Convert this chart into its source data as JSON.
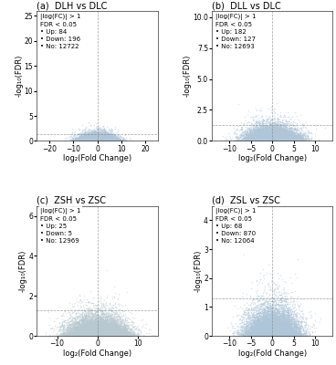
{
  "panels": [
    {
      "label": "(a)",
      "title": "DLH vs DLC",
      "up": 84,
      "down": 196,
      "no": 12722,
      "xlim": [
        -25,
        25
      ],
      "ylim": [
        0,
        26
      ],
      "yticks": [
        0,
        5,
        10,
        15,
        20,
        25
      ],
      "xticks": [
        -20,
        -10,
        0,
        10,
        20
      ],
      "seed": 42,
      "up_color": "#d94f43",
      "down_color": "#4472c4",
      "no_color": "#aec6d8",
      "fdr_line": 1.3,
      "fc_thresh": 1,
      "no_x_std": 3.5,
      "no_y_scale": 0.4,
      "up_x_mean": 6,
      "up_x_std": 3,
      "down_x_mean": -6,
      "down_x_std": 3,
      "sig_y_scale": 2.0
    },
    {
      "label": "(b)",
      "title": "DLL vs DLC",
      "up": 182,
      "down": 127,
      "no": 12693,
      "xlim": [
        -14,
        14
      ],
      "ylim": [
        0,
        10.5
      ],
      "yticks": [
        0.0,
        2.5,
        5.0,
        7.5,
        10.0
      ],
      "xticks": [
        -10,
        -5,
        0,
        5,
        10
      ],
      "seed": 123,
      "up_color": "#d94f43",
      "down_color": "#4472c4",
      "no_color": "#aec6d8",
      "fdr_line": 1.3,
      "fc_thresh": 1,
      "no_x_std": 3.0,
      "no_y_scale": 0.35,
      "up_x_mean": 4,
      "up_x_std": 2,
      "down_x_mean": -4,
      "down_x_std": 2,
      "sig_y_scale": 1.5
    },
    {
      "label": "(c)",
      "title": "ZSH vs ZSC",
      "up": 25,
      "down": 5,
      "no": 12969,
      "xlim": [
        -15,
        15
      ],
      "ylim": [
        0,
        6.5
      ],
      "yticks": [
        0,
        2,
        4,
        6
      ],
      "xticks": [
        -10,
        0,
        10
      ],
      "seed": 77,
      "up_color": "#d94f43",
      "down_color": "#4472c4",
      "no_color": "#b8c8d0",
      "fdr_line": 1.3,
      "fc_thresh": 1,
      "no_x_std": 3.5,
      "no_y_scale": 0.3,
      "up_x_mean": 9,
      "up_x_std": 2,
      "down_x_mean": -8,
      "down_x_std": 2,
      "sig_y_scale": 1.2
    },
    {
      "label": "(d)",
      "title": "ZSL vs ZSC",
      "up": 68,
      "down": 870,
      "no": 12064,
      "xlim": [
        -14,
        14
      ],
      "ylim": [
        0,
        4.5
      ],
      "yticks": [
        0,
        1,
        2,
        3,
        4
      ],
      "xticks": [
        -10,
        -5,
        0,
        5,
        10
      ],
      "seed": 55,
      "up_color": "#d94f43",
      "down_color": "#4472c4",
      "no_color": "#aec6d8",
      "fdr_line": 1.3,
      "fc_thresh": 1,
      "no_x_std": 3.0,
      "no_y_scale": 0.3,
      "up_x_mean": 4,
      "up_x_std": 2,
      "down_x_mean": -4,
      "down_x_std": 2,
      "sig_y_scale": 0.8
    }
  ],
  "xlabel": "log₂(Fold Change)",
  "ylabel": "-log₁₀(FDR)",
  "legend_fontsize": 5.0,
  "title_fontsize": 7,
  "axis_fontsize": 6,
  "tick_fontsize": 5.5
}
